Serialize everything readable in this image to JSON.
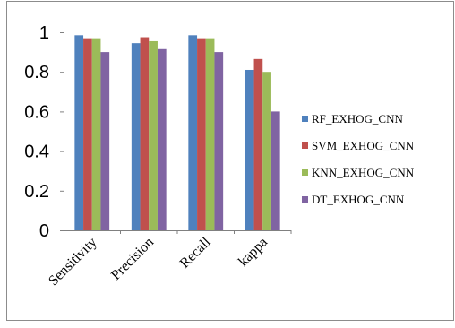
{
  "chart_data": {
    "type": "bar",
    "categories": [
      "Sensitivity",
      "Precision",
      "Recall",
      "kappa"
    ],
    "series": [
      {
        "name": "RF_EXHOG_CNN",
        "color": "#4F81BD",
        "values": [
          0.985,
          0.945,
          0.985,
          0.81
        ]
      },
      {
        "name": "SVM_EXHOG_CNN",
        "color": "#C0504D",
        "values": [
          0.97,
          0.975,
          0.97,
          0.865
        ]
      },
      {
        "name": "KNN_EXHOG_CNN",
        "color": "#9BBB59",
        "values": [
          0.97,
          0.955,
          0.97,
          0.8
        ]
      },
      {
        "name": "DT_EXHOG_CNN",
        "color": "#8064A2",
        "values": [
          0.9,
          0.915,
          0.9,
          0.6
        ]
      }
    ],
    "yticks": [
      "0",
      "0.2",
      "0.4",
      "0.6",
      "0.8",
      "1"
    ],
    "ylim": [
      0,
      1
    ],
    "grid": false,
    "legend_position": "right"
  }
}
